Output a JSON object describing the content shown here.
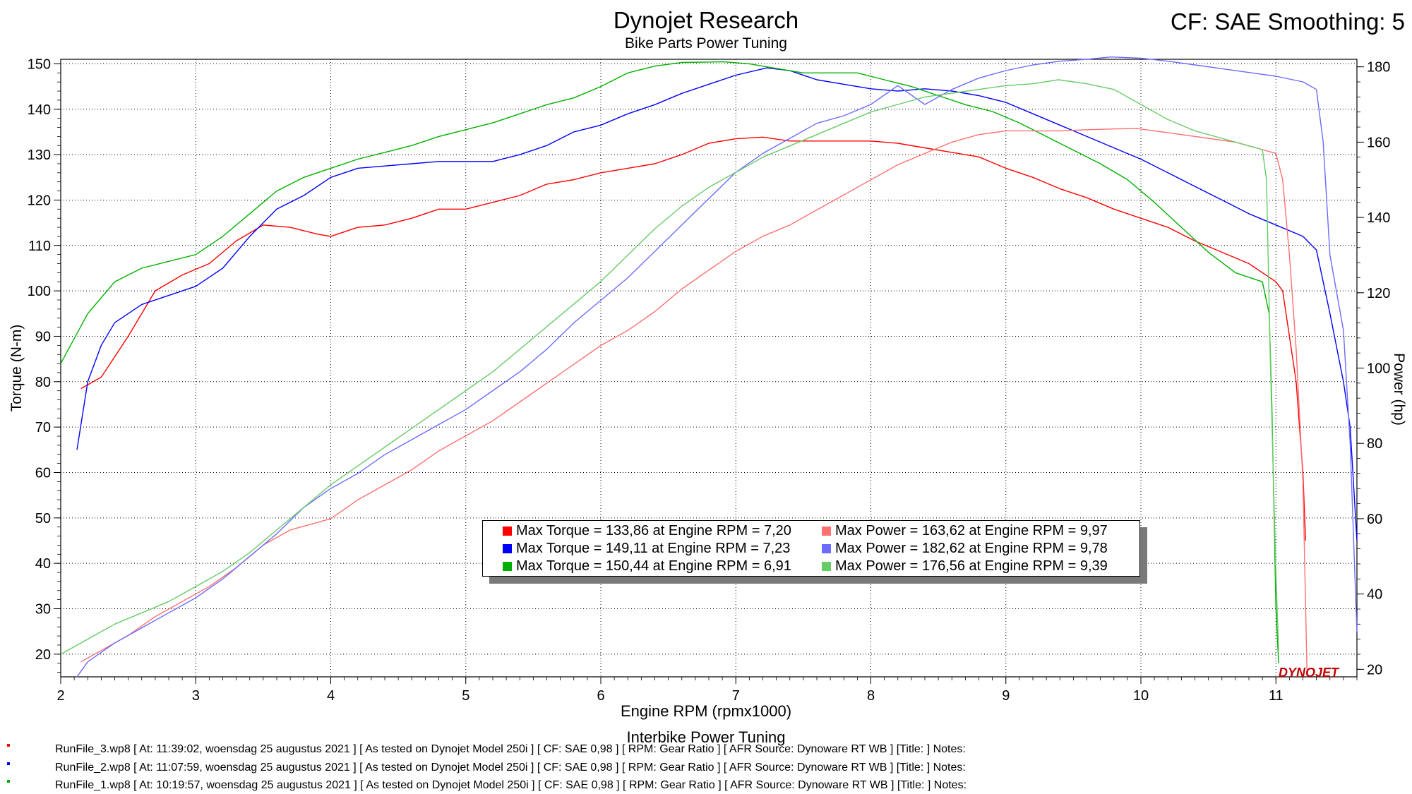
{
  "header": {
    "title": "Dynojet Research",
    "subtitle": "Bike Parts Power Tuning",
    "cf_info": "CF: SAE Smoothing: 5"
  },
  "footer": {
    "title": "Interbike Power Tuning",
    "runs": [
      {
        "text": "RunFile_3.wp8 [ At: 11:39:02, woensdag 25 augustus 2021 ] [ As tested on Dynojet Model 250i ] [ CF: SAE 0,98 ] [ RPM: Gear Ratio ] [ AFR Source: Dynoware RT WB ] [Title: ]  Notes:",
        "color": "#ff0000"
      },
      {
        "text": "RunFile_2.wp8 [ At: 11:07:59, woensdag 25 augustus 2021 ] [ As tested on Dynojet Model 250i ] [ CF: SAE 0,98 ] [ RPM: Gear Ratio ] [ AFR Source: Dynoware RT WB ] [Title: ]  Notes:",
        "color": "#0000ff"
      },
      {
        "text": "RunFile_1.wp8 [ At: 10:19:57, woensdag 25 augustus 2021 ] [ As tested on Dynojet Model 250i ] [ CF: SAE 0,98 ] [ RPM: Gear Ratio ] [ AFR Source: Dynoware RT WB ] [Title: ]  Notes:",
        "color": "#00b000"
      }
    ]
  },
  "logo_text": "DYNOJET",
  "chart_data": {
    "type": "line",
    "xlabel": "Engine RPM (rpmx1000)",
    "ylabel": "Torque (N-m)",
    "y2label": "Power (hp)",
    "xlim": [
      2,
      11.6
    ],
    "ylim": [
      15,
      151
    ],
    "y2lim": [
      18,
      182
    ],
    "x_ticks": [
      2,
      3,
      4,
      5,
      6,
      7,
      8,
      9,
      10,
      11
    ],
    "y_ticks": [
      20,
      30,
      40,
      50,
      60,
      70,
      80,
      90,
      100,
      110,
      120,
      130,
      140,
      150
    ],
    "y2_ticks": [
      20,
      40,
      60,
      80,
      100,
      120,
      140,
      160,
      180
    ],
    "grid": true,
    "legend": [
      {
        "text": "Max Torque = 133,86 at Engine RPM = 7,20",
        "color": "#ff0000"
      },
      {
        "text": "Max Power = 163,62 at Engine RPM = 9,97",
        "color": "#ff7070"
      },
      {
        "text": "Max Torque = 149,11 at Engine RPM = 7,23",
        "color": "#0000ff"
      },
      {
        "text": "Max Power = 182,62 at Engine RPM = 9,78",
        "color": "#6b6bff"
      },
      {
        "text": "Max Torque = 150,44 at Engine RPM = 6,91",
        "color": "#00b000"
      },
      {
        "text": "Max Power = 176,56 at Engine RPM = 9,39",
        "color": "#66cc66"
      }
    ],
    "series": [
      {
        "kind": "torque",
        "axis": "left",
        "color": "#ff0000",
        "x": [
          2.15,
          2.3,
          2.5,
          2.7,
          2.9,
          3.1,
          3.3,
          3.5,
          3.7,
          3.9,
          4.0,
          4.2,
          4.4,
          4.6,
          4.8,
          5.0,
          5.2,
          5.4,
          5.6,
          5.8,
          6.0,
          6.2,
          6.4,
          6.6,
          6.8,
          7.0,
          7.2,
          7.4,
          7.6,
          7.8,
          8.0,
          8.2,
          8.4,
          8.6,
          8.8,
          9.0,
          9.2,
          9.4,
          9.6,
          9.8,
          10.0,
          10.2,
          10.4,
          10.6,
          10.8,
          10.95,
          11.0,
          11.05,
          11.1,
          11.15,
          11.2,
          11.22
        ],
        "y": [
          78.5,
          81,
          90,
          100,
          103.5,
          106,
          111,
          114.5,
          114,
          112.5,
          112,
          114,
          114.5,
          116,
          118,
          118,
          119.5,
          121,
          123.5,
          124.5,
          126,
          127,
          128,
          130,
          132.5,
          133.5,
          133.86,
          133,
          133,
          133,
          133,
          132.5,
          131.5,
          130.5,
          129.5,
          127,
          125,
          122.5,
          120.5,
          118,
          116,
          114,
          111,
          108.5,
          106,
          103,
          102,
          100,
          90,
          80,
          60,
          45
        ]
      },
      {
        "kind": "torque",
        "axis": "left",
        "color": "#0000ff",
        "x": [
          2.12,
          2.2,
          2.3,
          2.4,
          2.6,
          2.8,
          3.0,
          3.2,
          3.4,
          3.6,
          3.8,
          4.0,
          4.2,
          4.4,
          4.6,
          4.8,
          5.0,
          5.2,
          5.4,
          5.6,
          5.8,
          6.0,
          6.2,
          6.4,
          6.6,
          6.8,
          7.0,
          7.23,
          7.4,
          7.6,
          7.8,
          8.0,
          8.2,
          8.4,
          8.6,
          8.8,
          9.0,
          9.2,
          9.4,
          9.6,
          9.8,
          10.0,
          10.2,
          10.4,
          10.6,
          10.8,
          11.0,
          11.2,
          11.3,
          11.4,
          11.5,
          11.55,
          11.6
        ],
        "y": [
          65,
          80,
          88,
          93,
          97,
          99,
          101,
          105,
          112,
          118,
          121,
          125,
          127,
          127.5,
          128,
          128.5,
          128.5,
          128.5,
          130,
          132,
          135,
          136.5,
          139,
          141,
          143.5,
          145.5,
          147.5,
          149.11,
          148.5,
          146.5,
          145.5,
          144.5,
          144,
          144.5,
          144,
          143,
          141.5,
          139,
          136.5,
          134,
          131.5,
          129,
          126,
          123,
          120,
          117,
          114.5,
          112,
          109,
          95,
          80,
          70,
          45
        ]
      },
      {
        "kind": "torque",
        "axis": "left",
        "color": "#00b000",
        "x": [
          2.0,
          2.2,
          2.4,
          2.6,
          2.8,
          3.0,
          3.2,
          3.4,
          3.6,
          3.8,
          4.0,
          4.2,
          4.4,
          4.6,
          4.8,
          5.0,
          5.2,
          5.4,
          5.6,
          5.8,
          6.0,
          6.2,
          6.4,
          6.6,
          6.8,
          6.91,
          7.1,
          7.3,
          7.5,
          7.7,
          7.9,
          8.1,
          8.3,
          8.5,
          8.7,
          8.9,
          9.1,
          9.3,
          9.5,
          9.7,
          9.9,
          10.1,
          10.3,
          10.5,
          10.7,
          10.9,
          10.95,
          10.97,
          11.0,
          11.02
        ],
        "y": [
          84,
          95,
          102,
          105,
          106.5,
          108,
          112,
          117,
          122,
          125,
          127,
          129,
          130.5,
          132,
          134,
          135.5,
          137,
          139,
          141,
          142.5,
          145,
          148,
          149.5,
          150.3,
          150.4,
          150.44,
          150,
          149,
          148,
          148,
          148,
          146.5,
          145,
          143,
          141,
          139.5,
          137,
          134,
          131,
          128,
          124.5,
          119.5,
          114,
          108.5,
          104,
          102,
          95,
          75,
          30,
          18
        ]
      },
      {
        "kind": "power",
        "axis": "right",
        "color": "#ff7070",
        "x": [
          2.15,
          2.3,
          2.5,
          2.7,
          2.9,
          3.1,
          3.3,
          3.5,
          3.7,
          3.9,
          4.0,
          4.2,
          4.4,
          4.6,
          4.8,
          5.0,
          5.2,
          5.4,
          5.6,
          5.8,
          6.0,
          6.2,
          6.4,
          6.6,
          6.8,
          7.0,
          7.2,
          7.4,
          7.6,
          7.8,
          8.0,
          8.2,
          8.4,
          8.6,
          8.8,
          9.0,
          9.2,
          9.4,
          9.6,
          9.8,
          9.97,
          10.1,
          10.3,
          10.5,
          10.7,
          10.9,
          11.0,
          11.05,
          11.1,
          11.15,
          11.2,
          11.23
        ],
        "y": [
          22,
          25,
          29,
          34,
          38,
          42,
          47,
          53,
          57,
          59,
          60,
          65,
          69,
          73,
          78,
          82,
          86,
          91,
          96,
          101,
          106,
          110,
          115,
          121,
          126,
          131,
          135,
          138,
          142,
          146,
          150,
          154,
          157,
          160,
          162,
          163,
          163,
          163,
          163.3,
          163.5,
          163.62,
          163,
          162,
          161,
          160,
          158,
          157,
          150,
          130,
          105,
          70,
          20
        ]
      },
      {
        "kind": "power",
        "axis": "right",
        "color": "#6b6bff",
        "x": [
          2.12,
          2.2,
          2.4,
          2.6,
          2.8,
          3.0,
          3.2,
          3.4,
          3.6,
          3.8,
          4.0,
          4.2,
          4.4,
          4.6,
          4.8,
          5.0,
          5.2,
          5.4,
          5.6,
          5.8,
          6.0,
          6.2,
          6.4,
          6.6,
          6.8,
          7.0,
          7.2,
          7.4,
          7.6,
          7.8,
          8.0,
          8.2,
          8.4,
          8.6,
          8.8,
          9.0,
          9.2,
          9.4,
          9.6,
          9.78,
          10.0,
          10.2,
          10.4,
          10.6,
          10.8,
          11.0,
          11.2,
          11.3,
          11.35,
          11.4,
          11.5,
          11.55,
          11.6
        ],
        "y": [
          18,
          22,
          27,
          31,
          35,
          39,
          44,
          50,
          56,
          63,
          68,
          72,
          77,
          81,
          85,
          89,
          94,
          99,
          105,
          112,
          118,
          124,
          131,
          138,
          145,
          152,
          157,
          161,
          165,
          167,
          170,
          175,
          170,
          174,
          177,
          179,
          180.5,
          181.5,
          182,
          182.62,
          182.3,
          181.5,
          180.5,
          179.5,
          178.5,
          177.5,
          176,
          174,
          160,
          130,
          110,
          80,
          30
        ]
      },
      {
        "kind": "power",
        "axis": "right",
        "color": "#66cc66",
        "x": [
          2.0,
          2.2,
          2.4,
          2.6,
          2.8,
          3.0,
          3.2,
          3.4,
          3.6,
          3.8,
          4.0,
          4.2,
          4.4,
          4.6,
          4.8,
          5.0,
          5.2,
          5.4,
          5.6,
          5.8,
          6.0,
          6.2,
          6.4,
          6.6,
          6.8,
          7.0,
          7.2,
          7.4,
          7.6,
          7.8,
          8.0,
          8.2,
          8.4,
          8.6,
          8.8,
          9.0,
          9.2,
          9.39,
          9.6,
          9.8,
          10.0,
          10.2,
          10.4,
          10.6,
          10.8,
          10.9,
          10.93,
          10.96,
          11.0,
          11.02
        ],
        "y": [
          24,
          28,
          32,
          35,
          38,
          42,
          46,
          51,
          57,
          63,
          69,
          74,
          79,
          84,
          89,
          94,
          99,
          105,
          111,
          117,
          123,
          130,
          137,
          143,
          148,
          152,
          156,
          159,
          162,
          165,
          168,
          170,
          172,
          173,
          174,
          175,
          175.5,
          176.56,
          175.5,
          174,
          170,
          166,
          163,
          161,
          159,
          158,
          150,
          100,
          45,
          25
        ]
      }
    ]
  }
}
